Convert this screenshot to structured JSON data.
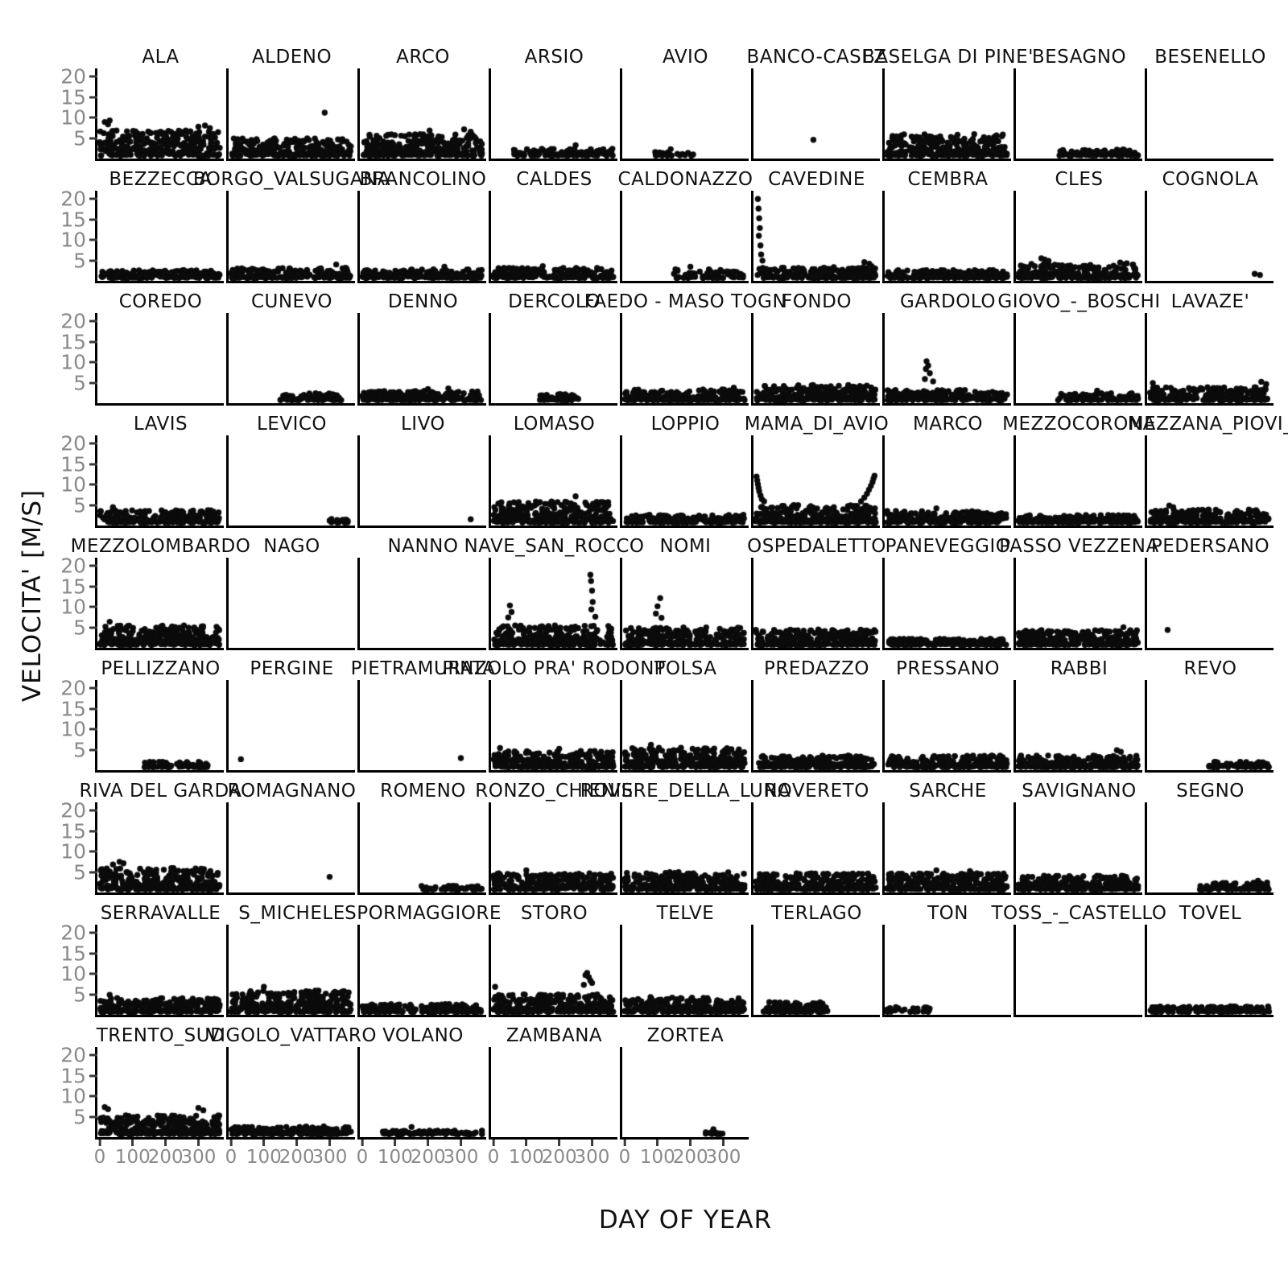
{
  "chart_data": {
    "type": "scatter",
    "title": "",
    "xlabel": "DAY OF YEAR",
    "ylabel": "VELOCITA' [M/S]",
    "xlim": [
      0,
      365
    ],
    "ylim": [
      0,
      22
    ],
    "xticks": [
      0,
      100,
      200,
      300
    ],
    "yticks": [
      20,
      15,
      10,
      5
    ],
    "grid": {
      "cols": 9,
      "rows": 9,
      "panel_count": 77
    },
    "legend": "none",
    "style": {
      "marker_color": "#0b0b0b",
      "tick_color": "#8a8a8a",
      "spine_color": "#000000",
      "marker_radius_px": 3.7
    },
    "panels": [
      {
        "name": "ALA",
        "band": [
          0,
          365,
          6.5,
          300
        ],
        "pts": [
          [
            15,
            8.8
          ],
          [
            30,
            9.2
          ],
          [
            25,
            8.2
          ],
          [
            300,
            7.6
          ],
          [
            320,
            7.9
          ],
          [
            335,
            7.2
          ]
        ]
      },
      {
        "name": "ALDENO",
        "band": [
          0,
          365,
          4.5,
          260
        ],
        "pts": [
          [
            285,
            11.2
          ]
        ]
      },
      {
        "name": "ARCO",
        "band": [
          0,
          365,
          5.5,
          280
        ],
        "pts": [
          [
            205,
            6.6
          ],
          [
            310,
            6.9
          ],
          [
            330,
            6.3
          ]
        ]
      },
      {
        "name": "ARSIO",
        "band": [
          60,
          365,
          1.8,
          120
        ],
        "pts": [
          [
            250,
            2.8
          ]
        ]
      },
      {
        "name": "AVIO",
        "band": [
          90,
          210,
          0.9,
          25
        ],
        "pts": [
          [
            140,
            1.8
          ]
        ]
      },
      {
        "name": "BANCO-CASEZ",
        "band": null,
        "pts": [
          [
            175,
            4.2
          ]
        ]
      },
      {
        "name": "BASELGA DI PINE'",
        "band": [
          0,
          365,
          5.5,
          300
        ],
        "pts": []
      },
      {
        "name": "BESAGNO",
        "band": [
          120,
          365,
          1.6,
          90
        ],
        "pts": []
      },
      {
        "name": "BESENELLO",
        "band": null,
        "pts": []
      },
      {
        "name": "BEZZECCA",
        "band": [
          0,
          365,
          2.0,
          200
        ],
        "pts": []
      },
      {
        "name": "BORGO_VALSUGANA",
        "band": [
          0,
          365,
          2.6,
          220
        ],
        "pts": [
          [
            320,
            3.6
          ]
        ]
      },
      {
        "name": "BRANCOLINO",
        "band": [
          0,
          365,
          2.2,
          200
        ],
        "pts": [
          [
            250,
            3.0
          ]
        ]
      },
      {
        "name": "CALDES",
        "band": [
          0,
          365,
          2.6,
          200
        ],
        "pts": [
          [
            150,
            3.2
          ]
        ]
      },
      {
        "name": "CALDONAZZO",
        "band": [
          150,
          365,
          2.2,
          70
        ],
        "pts": [
          [
            200,
            3.0
          ]
        ]
      },
      {
        "name": "CAVEDINE",
        "band": [
          0,
          365,
          2.8,
          220
        ],
        "pts": [
          [
            6,
            20.5
          ],
          [
            8,
            18
          ],
          [
            10,
            15.5
          ],
          [
            12,
            13
          ],
          [
            9,
            11
          ],
          [
            14,
            8.5
          ],
          [
            16,
            6.2
          ],
          [
            20,
            4.6
          ],
          [
            330,
            4.2
          ],
          [
            345,
            3.8
          ],
          [
            352,
            3.2
          ]
        ]
      },
      {
        "name": "CEMBRA",
        "band": [
          0,
          365,
          2.0,
          200
        ],
        "pts": []
      },
      {
        "name": "CLES",
        "band": [
          0,
          365,
          3.6,
          220
        ],
        "pts": [
          [
            70,
            5.2
          ],
          [
            80,
            4.9
          ],
          [
            92,
            4.5
          ],
          [
            310,
            4.1
          ],
          [
            330,
            3.9
          ]
        ]
      },
      {
        "name": "COGNOLA",
        "band": null,
        "pts": [
          [
            320,
            1.2
          ],
          [
            336,
            0.9
          ]
        ]
      },
      {
        "name": "COREDO",
        "band": null,
        "pts": []
      },
      {
        "name": "CUNEVO",
        "band": [
          150,
          340,
          1.8,
          80
        ],
        "pts": []
      },
      {
        "name": "DENNO",
        "band": [
          0,
          365,
          2.4,
          200
        ],
        "pts": [
          [
            200,
            3.0
          ],
          [
            262,
            3.2
          ]
        ]
      },
      {
        "name": "DERCOLO",
        "band": [
          140,
          260,
          1.6,
          50
        ],
        "pts": []
      },
      {
        "name": "FAEDO - MASO TOGN",
        "band": [
          0,
          365,
          2.8,
          230
        ],
        "pts": [
          [
            332,
            3.4
          ]
        ]
      },
      {
        "name": "FONDO",
        "band": [
          0,
          365,
          4.0,
          280
        ],
        "pts": []
      },
      {
        "name": "GARDOLO",
        "band": [
          0,
          365,
          2.6,
          220
        ],
        "pts": [
          [
            120,
            10.2
          ],
          [
            125,
            9.1
          ],
          [
            118,
            8.2
          ],
          [
            130,
            7.1
          ],
          [
            115,
            5.6
          ],
          [
            140,
            5.0
          ]
        ]
      },
      {
        "name": "GIOVO_-_BOSCHI",
        "band": [
          120,
          365,
          1.8,
          100
        ],
        "pts": [
          [
            240,
            2.6
          ]
        ]
      },
      {
        "name": "LAVAZE'",
        "band": [
          0,
          365,
          3.4,
          240
        ],
        "pts": [
          [
            10,
            4.6
          ],
          [
            340,
            4.9
          ],
          [
            355,
            4.3
          ]
        ]
      },
      {
        "name": "LAVIS",
        "band": [
          0,
          365,
          3.2,
          240
        ],
        "pts": [
          [
            40,
            4.1
          ]
        ]
      },
      {
        "name": "LEVICO",
        "band": [
          300,
          365,
          0.9,
          20
        ],
        "pts": []
      },
      {
        "name": "LIVO",
        "band": null,
        "pts": [
          [
            330,
            1.0
          ]
        ]
      },
      {
        "name": "LOMASO",
        "band": [
          0,
          365,
          5.5,
          300
        ],
        "pts": [
          [
            250,
            6.9
          ]
        ]
      },
      {
        "name": "LOPPIO",
        "band": [
          0,
          365,
          2.0,
          180
        ],
        "pts": []
      },
      {
        "name": "MAMA_DI_AVIO",
        "band": [
          0,
          365,
          4.5,
          300
        ],
        "pts": [
          [
            2,
            12
          ],
          [
            4,
            11
          ],
          [
            6,
            10
          ],
          [
            8,
            9.1
          ],
          [
            10,
            8.2
          ],
          [
            14,
            7.1
          ],
          [
            18,
            6.2
          ],
          [
            25,
            5.6
          ],
          [
            320,
            5.6
          ],
          [
            330,
            6.6
          ],
          [
            338,
            7.6
          ],
          [
            344,
            8.6
          ],
          [
            350,
            9.6
          ],
          [
            355,
            10.6
          ],
          [
            358,
            11.5
          ],
          [
            361,
            12.2
          ]
        ]
      },
      {
        "name": "MARCO",
        "band": [
          0,
          365,
          3.0,
          240
        ],
        "pts": [
          [
            150,
            3.8
          ]
        ]
      },
      {
        "name": "MEZZOCORONA",
        "band": [
          0,
          365,
          2.0,
          200
        ],
        "pts": []
      },
      {
        "name": "MEZZANA_PIOVI_",
        "band": [
          0,
          365,
          3.4,
          240
        ],
        "pts": [
          [
            60,
            4.5
          ],
          [
            72,
            4.1
          ]
        ]
      },
      {
        "name": "MEZZOLOMBARDO",
        "band": [
          0,
          365,
          5.0,
          300
        ],
        "pts": [
          [
            30,
            6.1
          ]
        ]
      },
      {
        "name": "NAGO",
        "band": null,
        "pts": []
      },
      {
        "name": "NANNO",
        "band": null,
        "pts": []
      },
      {
        "name": "NAVE_SAN_ROCCO",
        "band": [
          0,
          365,
          5.0,
          280
        ],
        "pts": [
          [
            50,
            10.3
          ],
          [
            55,
            8.6
          ],
          [
            45,
            7.2
          ],
          [
            295,
            18.2
          ],
          [
            297,
            16.6
          ],
          [
            300,
            14.1
          ],
          [
            302,
            11.2
          ],
          [
            298,
            9.3
          ],
          [
            310,
            7.4
          ]
        ]
      },
      {
        "name": "NOMI",
        "band": [
          0,
          365,
          4.5,
          260
        ],
        "pts": [
          [
            100,
            10.1
          ],
          [
            108,
            12.2
          ],
          [
            95,
            8.2
          ],
          [
            112,
            7.1
          ]
        ]
      },
      {
        "name": "OSPEDALETTO",
        "band": [
          0,
          365,
          4.0,
          260
        ],
        "pts": []
      },
      {
        "name": "PANEVEGGIO",
        "band": [
          0,
          365,
          1.6,
          200
        ],
        "pts": []
      },
      {
        "name": "PASSO VEZZENA",
        "band": [
          0,
          365,
          3.8,
          260
        ],
        "pts": [
          [
            320,
            4.7
          ]
        ]
      },
      {
        "name": "PEDERSANO",
        "band": null,
        "pts": [
          [
            55,
            4.0
          ]
        ]
      },
      {
        "name": "PELLIZZANO",
        "band": [
          130,
          330,
          1.4,
          70
        ],
        "pts": []
      },
      {
        "name": "PERGINE",
        "band": null,
        "pts": [
          [
            30,
            2.2
          ]
        ]
      },
      {
        "name": "PIETRAMURATA",
        "band": null,
        "pts": [
          [
            300,
            2.5
          ]
        ]
      },
      {
        "name": "PINZOLO PRA' RODONT",
        "band": [
          0,
          365,
          4.2,
          280
        ],
        "pts": [
          [
            20,
            5.1
          ],
          [
            200,
            4.9
          ]
        ]
      },
      {
        "name": "POLSA",
        "band": [
          0,
          365,
          5.0,
          300
        ],
        "pts": [
          [
            80,
            5.9
          ]
        ]
      },
      {
        "name": "PREDAZZO",
        "band": [
          0,
          365,
          3.0,
          240
        ],
        "pts": []
      },
      {
        "name": "PRESSANO",
        "band": [
          0,
          365,
          3.0,
          240
        ],
        "pts": []
      },
      {
        "name": "RABBI",
        "band": [
          0,
          365,
          3.0,
          240
        ],
        "pts": [
          [
            300,
            4.5
          ],
          [
            312,
            4.1
          ]
        ]
      },
      {
        "name": "REVO",
        "band": [
          180,
          365,
          1.4,
          70
        ],
        "pts": []
      },
      {
        "name": "RIVA DEL GARDA",
        "band": [
          0,
          365,
          5.5,
          300
        ],
        "pts": [
          [
            60,
            7.3
          ],
          [
            72,
            6.9
          ],
          [
            40,
            6.6
          ]
        ]
      },
      {
        "name": "ROMAGNANO",
        "band": null,
        "pts": [
          [
            300,
            3.4
          ]
        ]
      },
      {
        "name": "ROMENO",
        "band": [
          180,
          365,
          1.0,
          50
        ],
        "pts": []
      },
      {
        "name": "RONZO_CHIENIS",
        "band": [
          0,
          365,
          4.2,
          260
        ],
        "pts": [
          [
            100,
            5.1
          ]
        ]
      },
      {
        "name": "ROVERE_DELLA_LUNA",
        "band": [
          0,
          365,
          4.5,
          280
        ],
        "pts": []
      },
      {
        "name": "ROVERETO",
        "band": [
          0,
          365,
          4.2,
          280
        ],
        "pts": []
      },
      {
        "name": "SARCHE",
        "band": [
          0,
          365,
          4.2,
          280
        ],
        "pts": [
          [
            150,
            5.1
          ],
          [
            252,
            4.9
          ]
        ]
      },
      {
        "name": "SAVIGNANO",
        "band": [
          0,
          365,
          3.6,
          240
        ],
        "pts": []
      },
      {
        "name": "SEGNO",
        "band": [
          150,
          365,
          1.8,
          90
        ],
        "pts": [
          [
            330,
            2.4
          ]
        ]
      },
      {
        "name": "SERRAVALLE",
        "band": [
          0,
          365,
          3.6,
          260
        ],
        "pts": [
          [
            30,
            4.5
          ]
        ]
      },
      {
        "name": "S_MICHELE",
        "band": [
          0,
          365,
          5.5,
          320
        ],
        "pts": [
          [
            100,
            6.6
          ]
        ]
      },
      {
        "name": "SPORMAGGIORE",
        "band": [
          0,
          365,
          2.0,
          200
        ],
        "pts": []
      },
      {
        "name": "STORO",
        "band": [
          0,
          365,
          4.5,
          280
        ],
        "pts": [
          [
            5,
            6.6
          ],
          [
            275,
            7.1
          ],
          [
            280,
            9.6
          ],
          [
            285,
            10.2
          ],
          [
            290,
            9.1
          ],
          [
            295,
            8.2
          ],
          [
            300,
            7.6
          ]
        ]
      },
      {
        "name": "TELVE",
        "band": [
          0,
          365,
          3.8,
          260
        ],
        "pts": []
      },
      {
        "name": "TERLAGO",
        "band": [
          20,
          220,
          2.6,
          130
        ],
        "pts": []
      },
      {
        "name": "TON",
        "band": [
          0,
          140,
          1.2,
          35
        ],
        "pts": []
      },
      {
        "name": "TOSS_-_CASTELLO",
        "band": null,
        "pts": []
      },
      {
        "name": "TOVEL",
        "band": [
          0,
          365,
          1.4,
          180
        ],
        "pts": []
      },
      {
        "name": "TRENTO_SUD",
        "band": [
          0,
          365,
          5.0,
          280
        ],
        "pts": [
          [
            15,
            7.1
          ],
          [
            25,
            6.6
          ],
          [
            300,
            6.9
          ],
          [
            315,
            6.3
          ]
        ]
      },
      {
        "name": "VIGOLO_VATTARO",
        "band": [
          0,
          365,
          2.0,
          200
        ],
        "pts": []
      },
      {
        "name": "VOLANO",
        "band": [
          60,
          365,
          0.9,
          100
        ],
        "pts": [
          [
            150,
            2.0
          ]
        ]
      },
      {
        "name": "ZAMBANA",
        "band": null,
        "pts": []
      },
      {
        "name": "ZORTEA",
        "band": [
          240,
          300,
          0.8,
          15
        ],
        "pts": [
          [
            270,
            1.4
          ]
        ]
      }
    ]
  }
}
